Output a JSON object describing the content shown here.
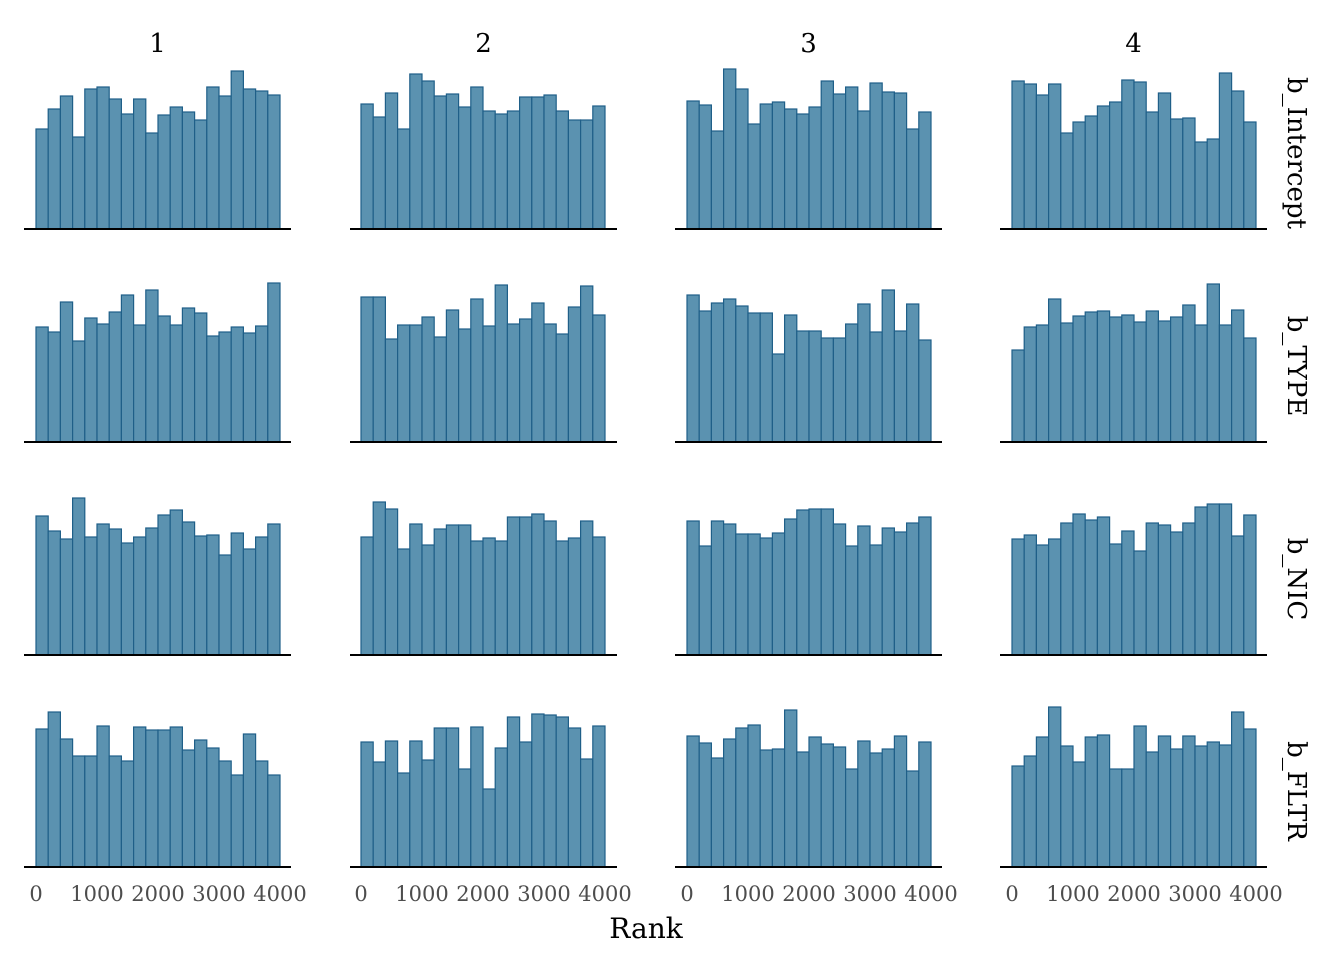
{
  "chart_data": {
    "type": "bar",
    "subtype": "rank-histogram-facets",
    "xlabel": "Rank",
    "x_ticks": [
      0,
      1000,
      2000,
      3000,
      4000
    ],
    "xlim": [
      0,
      4000
    ],
    "ylim": [
      0,
      160
    ],
    "bins": 20,
    "bar_color": "#5b92b0",
    "bar_edge_color": "#1f5f88",
    "grid": false,
    "columns": [
      "1",
      "2",
      "3",
      "4"
    ],
    "rows": [
      {
        "name": "b_Intercept",
        "facets": [
          {
            "column": "1",
            "counts": [
              100,
              120,
              133,
              92,
              140,
              142,
              130,
              115,
              130,
              96,
              114,
              122,
              117,
              109,
              142,
              133,
              158,
              140,
              138,
              134
            ]
          },
          {
            "column": "2",
            "counts": [
              125,
              112,
              136,
              100,
              155,
              148,
              133,
              135,
              122,
              142,
              118,
              115,
              118,
              132,
              132,
              134,
              118,
              109,
              109,
              123
            ]
          },
          {
            "column": "3",
            "counts": [
              128,
              124,
              98,
              160,
              140,
              105,
              125,
              127,
              120,
              115,
              122,
              148,
              135,
              142,
              118,
              146,
              137,
              136,
              100,
              117
            ]
          },
          {
            "column": "4",
            "counts": [
              148,
              145,
              134,
              145,
              96,
              107,
              113,
              123,
              127,
              149,
              147,
              117,
              136,
              110,
              111,
              87,
              90,
              156,
              138,
              107
            ]
          }
        ]
      },
      {
        "name": "b_TYPE",
        "facets": [
          {
            "column": "1",
            "counts": [
              115,
              110,
              140,
              101,
              124,
              118,
              130,
              147,
              117,
              152,
              126,
              117,
              134,
              129,
              106,
              110,
              115,
              109,
              116,
              159
            ]
          },
          {
            "column": "2",
            "counts": [
              145,
              145,
              103,
              117,
              117,
              125,
              105,
              132,
              113,
              143,
              116,
              157,
              118,
              123,
              139,
              118,
              108,
              135,
              156,
              127
            ]
          },
          {
            "column": "3",
            "counts": [
              147,
              131,
              139,
              143,
              136,
              129,
              129,
              88,
              127,
              111,
              111,
              104,
              104,
              118,
              138,
              110,
              152,
              111,
              138,
              102
            ]
          },
          {
            "column": "4",
            "counts": [
              92,
              115,
              117,
              143,
              119,
              126,
              130,
              131,
              125,
              127,
              120,
              131,
              121,
              125,
              137,
              117,
              158,
              117,
              132,
              104
            ]
          }
        ]
      },
      {
        "name": "b_NIC",
        "facets": [
          {
            "column": "1",
            "counts": [
              139,
              124,
              116,
              157,
              118,
              131,
              126,
              112,
              118,
              127,
              140,
              145,
              133,
              119,
              120,
              100,
              122,
              106,
              118,
              131
            ]
          },
          {
            "column": "2",
            "counts": [
              118,
              153,
              146,
              106,
              131,
              110,
              126,
              130,
              130,
              114,
              117,
              114,
              138,
              138,
              141,
              134,
              114,
              117,
              134,
              118
            ]
          },
          {
            "column": "3",
            "counts": [
              134,
              109,
              134,
              131,
              121,
              121,
              117,
              122,
              136,
              145,
              146,
              146,
              131,
              109,
              129,
              110,
              127,
              123,
              132,
              138
            ]
          },
          {
            "column": "4",
            "counts": [
              116,
              120,
              110,
              116,
              132,
              141,
              135,
              138,
              111,
              124,
              104,
              132,
              130,
              123,
              132,
              148,
              151,
              151,
              119,
              140
            ]
          }
        ]
      },
      {
        "name": "b_FLTR",
        "facets": [
          {
            "column": "1",
            "counts": [
              138,
              155,
              128,
              111,
              111,
              141,
              111,
              106,
              140,
              137,
              137,
              140,
              117,
              127,
              119,
              106,
              92,
              133,
              106,
              92
            ]
          },
          {
            "column": "2",
            "counts": [
              125,
              105,
              126,
              94,
              126,
              107,
              139,
              139,
              98,
              140,
              78,
              119,
              150,
              125,
              153,
              152,
              150,
              139,
              108,
              141
            ]
          },
          {
            "column": "3",
            "counts": [
              131,
              124,
              109,
              128,
              139,
              142,
              117,
              118,
              157,
              115,
              130,
              123,
              120,
              98,
              126,
              114,
              118,
              131,
              96,
              125
            ]
          },
          {
            "column": "4",
            "counts": [
              101,
              111,
              130,
              160,
              121,
              105,
              130,
              132,
              98,
              98,
              141,
              115,
              131,
              118,
              131,
              121,
              125,
              122,
              155,
              138
            ]
          }
        ]
      }
    ]
  }
}
